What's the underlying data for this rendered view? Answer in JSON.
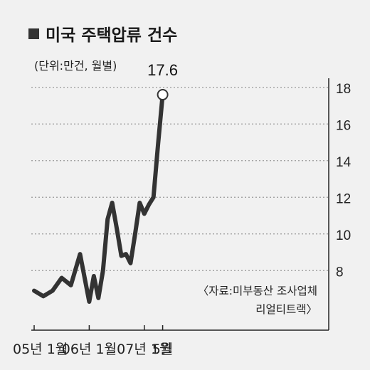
{
  "chart_data": {
    "type": "line",
    "title": "미국 주택압류 건수",
    "subtitle": "(단위:만건, 월별)",
    "source_line1": "〈자료:미부동산 조사업체",
    "source_line2": "리얼티트랙〉",
    "x_tick_labels": [
      "05년 1월",
      "06년 1월",
      "07년 1월",
      "5월"
    ],
    "y_ticks": [
      8,
      10,
      12,
      14,
      16,
      18
    ],
    "ylim": [
      5.3,
      18
    ],
    "grid": true,
    "callout": "17.6",
    "series": [
      {
        "x": [
          "2005-01",
          "2005-03",
          "2005-05",
          "2005-07",
          "2005-09",
          "2005-11",
          "2006-01",
          "2006-02",
          "2006-03",
          "2006-04",
          "2006-05",
          "2006-06",
          "2006-07",
          "2006-08",
          "2006-09",
          "2006-10",
          "2006-11",
          "2006-12",
          "2007-01",
          "2007-02",
          "2007-03",
          "2007-04",
          "2007-05"
        ],
        "values": [
          6.9,
          6.6,
          6.9,
          7.6,
          7.2,
          8.9,
          6.3,
          7.7,
          6.5,
          8.0,
          10.8,
          11.7,
          10.3,
          8.8,
          8.9,
          8.4,
          10.0,
          11.7,
          11.1,
          11.6,
          12.0,
          14.9,
          17.6
        ]
      }
    ]
  },
  "colors": {
    "background": "#f1f1f1",
    "line": "#333333",
    "grid": "#999999",
    "axis": "#222222"
  }
}
